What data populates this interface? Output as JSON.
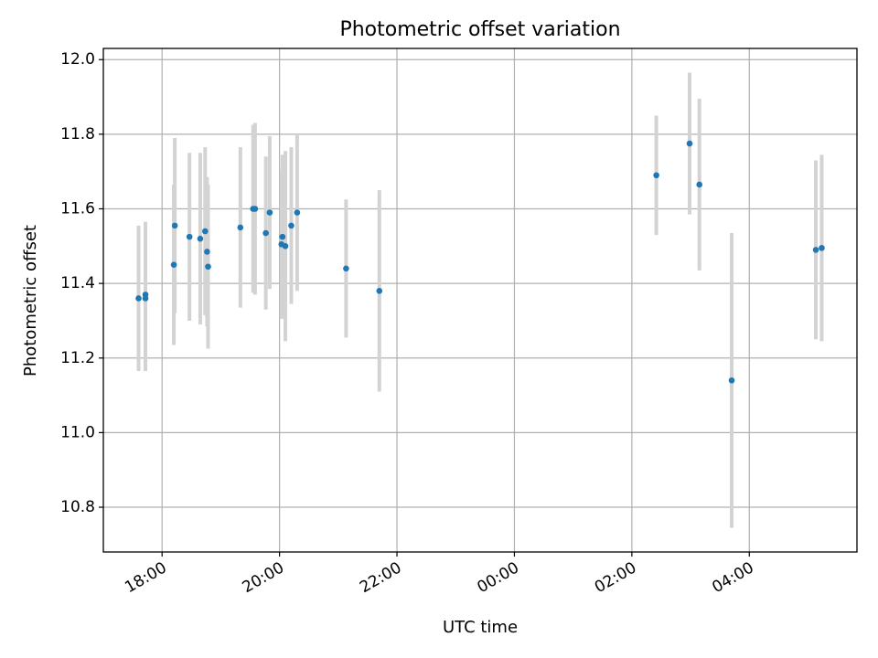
{
  "chart_data": {
    "type": "scatter",
    "title": "Photometric offset variation",
    "xlabel": "UTC time",
    "ylabel": "Photometric offset",
    "xlim": [
      "17:00",
      "05:50"
    ],
    "ylim": [
      10.68,
      12.03
    ],
    "xticks": [
      "18:00",
      "20:00",
      "22:00",
      "00:00",
      "02:00",
      "04:00"
    ],
    "yticks": [
      "10.8",
      "11.0",
      "11.2",
      "11.4",
      "11.6",
      "11.8",
      "12.0"
    ],
    "grid": true,
    "colors": {
      "point": "#1f77b4",
      "errorbar": "#d3d3d3",
      "grid": "#b0b0b0"
    },
    "points": [
      {
        "x": "17:36",
        "y": 11.36,
        "err": 0.195
      },
      {
        "x": "17:43",
        "y": 11.37,
        "err": 0.195
      },
      {
        "x": "17:43",
        "y": 11.36,
        "err": 0.195
      },
      {
        "x": "18:12",
        "y": 11.45,
        "err": 0.215
      },
      {
        "x": "18:13",
        "y": 11.555,
        "err": 0.235
      },
      {
        "x": "18:28",
        "y": 11.525,
        "err": 0.225
      },
      {
        "x": "18:39",
        "y": 11.52,
        "err": 0.23
      },
      {
        "x": "18:44",
        "y": 11.54,
        "err": 0.225
      },
      {
        "x": "18:46",
        "y": 11.485,
        "err": 0.2
      },
      {
        "x": "18:47",
        "y": 11.445,
        "err": 0.22
      },
      {
        "x": "19:20",
        "y": 11.55,
        "err": 0.215
      },
      {
        "x": "19:33",
        "y": 11.6,
        "err": 0.225
      },
      {
        "x": "19:35",
        "y": 11.6,
        "err": 0.23
      },
      {
        "x": "19:46",
        "y": 11.535,
        "err": 0.205
      },
      {
        "x": "19:50",
        "y": 11.59,
        "err": 0.205
      },
      {
        "x": "20:02",
        "y": 11.505,
        "err": 0.2
      },
      {
        "x": "20:03",
        "y": 11.525,
        "err": 0.22
      },
      {
        "x": "20:06",
        "y": 11.5,
        "err": 0.255
      },
      {
        "x": "20:12",
        "y": 11.555,
        "err": 0.21
      },
      {
        "x": "20:18",
        "y": 11.59,
        "err": 0.21
      },
      {
        "x": "21:08",
        "y": 11.44,
        "err": 0.185
      },
      {
        "x": "21:42",
        "y": 11.38,
        "err": 0.27
      },
      {
        "x": "02:25",
        "y": 11.69,
        "err": 0.16
      },
      {
        "x": "02:59",
        "y": 11.775,
        "err": 0.19
      },
      {
        "x": "03:09",
        "y": 11.665,
        "err": 0.23
      },
      {
        "x": "03:42",
        "y": 11.14,
        "err": 0.395
      },
      {
        "x": "05:08",
        "y": 11.49,
        "err": 0.24
      },
      {
        "x": "05:14",
        "y": 11.495,
        "err": 0.25
      }
    ]
  }
}
